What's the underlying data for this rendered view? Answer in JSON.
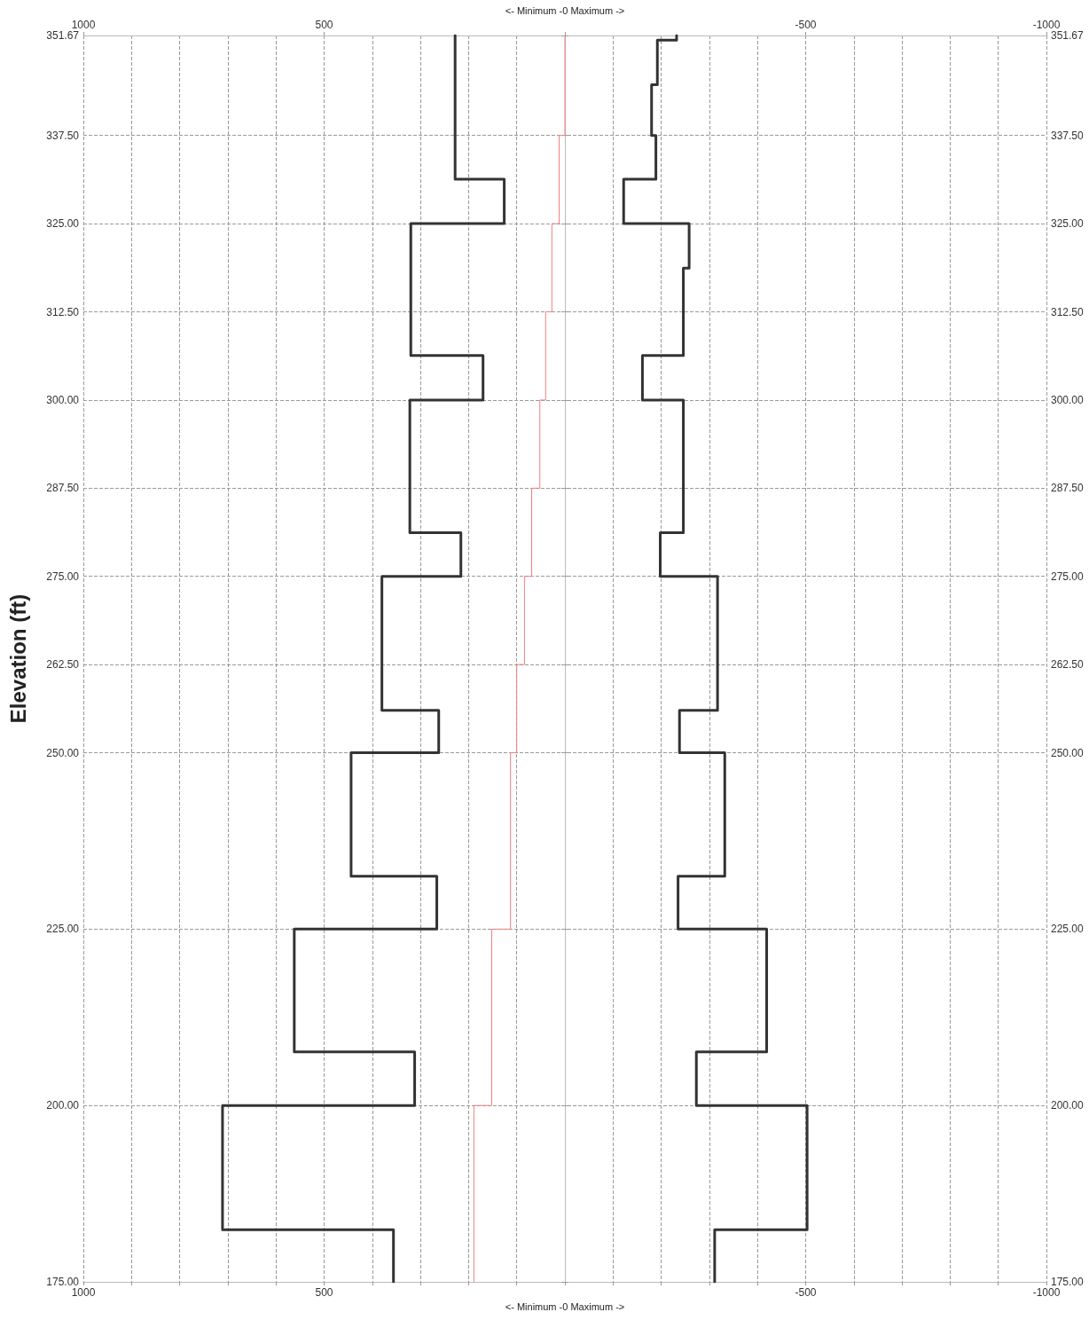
{
  "chart_data": {
    "type": "step",
    "orientation": "horizontal",
    "xlabel": "<- Minimum -0 Maximum ->",
    "x2label": "<- Minimum -0 Maximum ->",
    "ylabel": "Elevation (ft)",
    "xlim": [
      1000,
      -1000
    ],
    "x2lim": [
      1000,
      -1000
    ],
    "xticks": [
      1000,
      {
        "value": 900,
        "label": null
      },
      {
        "value": 800,
        "label": null
      },
      {
        "value": 700,
        "label": null
      },
      {
        "value": 600,
        "label": null
      },
      500,
      {
        "value": 400,
        "label": null
      },
      {
        "value": 300,
        "label": null
      },
      {
        "value": 200,
        "label": null
      },
      {
        "value": 100,
        "label": null
      },
      {
        "value": 0,
        "label": null
      },
      {
        "value": -100,
        "label": null
      },
      {
        "value": -200,
        "label": null
      },
      {
        "value": -300,
        "label": null
      },
      {
        "value": -400,
        "label": null
      },
      -500,
      {
        "value": -600,
        "label": null
      },
      {
        "value": -700,
        "label": null
      },
      {
        "value": -800,
        "label": null
      },
      {
        "value": -900,
        "label": null
      },
      -1000
    ],
    "x2ticks": [
      1000,
      500,
      {
        "value": 0,
        "label": null
      },
      -500,
      -1000
    ],
    "ylim": [
      175,
      351.67
    ],
    "y2lim": [
      175,
      351.67
    ],
    "yticks": [
      {
        "value": 175,
        "label": "175.00"
      },
      {
        "value": 200,
        "label": "200.00"
      },
      {
        "value": 225,
        "label": "225.00"
      },
      {
        "value": 250,
        "label": "250.00"
      },
      {
        "value": 262.5,
        "label": "262.50"
      },
      {
        "value": 275,
        "label": "275.00"
      },
      {
        "value": 287.5,
        "label": "287.50"
      },
      {
        "value": 300,
        "label": "300.00"
      },
      {
        "value": 312.5,
        "label": "312.50"
      },
      {
        "value": 325,
        "label": "325.00"
      },
      {
        "value": 337.5,
        "label": "337.50"
      },
      351.67
    ],
    "y2ticks": [
      {
        "value": 175,
        "label": "175.00"
      },
      {
        "value": 200,
        "label": "200.00"
      },
      {
        "value": 225,
        "label": "225.00"
      },
      {
        "value": 250,
        "label": "250.00"
      },
      {
        "value": 262.5,
        "label": "262.50"
      },
      {
        "value": 275,
        "label": "275.00"
      },
      {
        "value": 287.5,
        "label": "287.50"
      },
      {
        "value": 300,
        "label": "300.00"
      },
      {
        "value": 312.5,
        "label": "312.50"
      },
      {
        "value": 325,
        "label": "325.00"
      },
      {
        "value": 337.5,
        "label": "337.50"
      },
      351.67
    ],
    "grid": true,
    "line_style": "solid",
    "marker": "none",
    "series": [
      {
        "color": "#333333",
        "x": [
          351.67,
          331.3,
          325,
          306.3,
          300,
          281.2,
          275,
          256,
          250,
          232.5,
          225,
          207.6,
          200,
          182.4,
          175
        ],
        "values": [
          228,
          126,
          320,
          170,
          322,
          216,
          380,
          262,
          444,
          266,
          562,
          312,
          711,
          356,
          356
        ]
      },
      {
        "color": "#333333",
        "x": [
          351.67,
          351,
          344.7,
          337.5,
          331.3,
          325,
          318.7,
          306.3,
          300,
          281.2,
          275,
          256,
          250,
          232.5,
          225,
          207.6,
          200,
          182.4,
          175
        ],
        "values": [
          -232,
          -192,
          -180,
          -189,
          -122,
          -258,
          -246,
          -161,
          -246,
          -198,
          -317,
          -238,
          -332,
          -235,
          -419,
          -273,
          -503,
          -311,
          -311
        ]
      },
      {
        "color": "#f08080",
        "x": [
          351.67,
          337.5,
          325,
          312.5,
          300,
          287.5,
          275,
          262.5,
          250,
          225,
          200,
          175
        ],
        "values": [
          0,
          12,
          27,
          40,
          52,
          69,
          84,
          100,
          113,
          152,
          189,
          189
        ]
      }
    ]
  }
}
